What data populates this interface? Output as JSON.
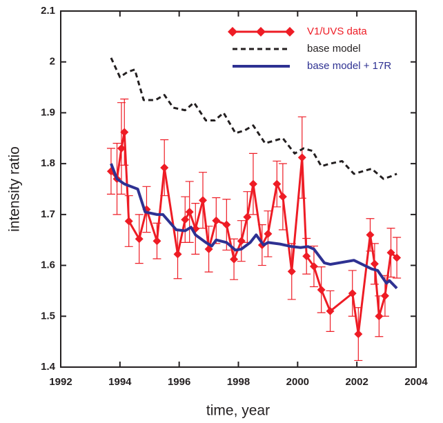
{
  "chart_data": {
    "type": "line",
    "xlabel": "time, year",
    "ylabel": "intensity ratio",
    "xlim": [
      1992,
      2004
    ],
    "xticks": [
      1992,
      1994,
      1996,
      1998,
      2000,
      2002,
      2004
    ],
    "ylim": [
      1.4,
      2.1
    ],
    "yticks": [
      1.4,
      1.5,
      1.6,
      1.7,
      1.8,
      1.9,
      2,
      2.1
    ],
    "legend": "upper right",
    "series": [
      {
        "name": "V1/UVS data",
        "color": "#ee1c25",
        "style": "solid-markers",
        "x": [
          1993.7,
          1993.9,
          1994.05,
          1994.15,
          1994.3,
          1994.65,
          1994.9,
          1995.25,
          1995.5,
          1995.95,
          1996.2,
          1996.35,
          1996.55,
          1996.8,
          1997.0,
          1997.25,
          1997.6,
          1997.85,
          1998.1,
          1998.3,
          1998.5,
          1998.8,
          1999.0,
          1999.3,
          1999.5,
          1999.8,
          2000.15,
          2000.3,
          2000.55,
          2000.8,
          2001.1,
          2001.85,
          2002.05,
          2002.45,
          2002.6,
          2002.75,
          2002.95,
          2003.15,
          2003.35
        ],
        "values": [
          1.785,
          1.77,
          1.83,
          1.862,
          1.687,
          1.652,
          1.71,
          1.648,
          1.792,
          1.622,
          1.69,
          1.705,
          1.672,
          1.728,
          1.632,
          1.688,
          1.68,
          1.612,
          1.648,
          1.695,
          1.76,
          1.64,
          1.662,
          1.76,
          1.735,
          1.588,
          1.812,
          1.618,
          1.598,
          1.552,
          1.51,
          1.545,
          1.465,
          1.66,
          1.603,
          1.5,
          1.54,
          1.625,
          1.615
        ],
        "errors": [
          0.045,
          0.07,
          0.09,
          0.065,
          0.05,
          0.048,
          0.045,
          0.035,
          0.055,
          0.048,
          0.045,
          0.06,
          0.05,
          0.055,
          0.045,
          0.045,
          0.05,
          0.04,
          0.04,
          0.05,
          0.06,
          0.04,
          0.045,
          0.045,
          0.065,
          0.055,
          0.08,
          0.035,
          0.04,
          0.045,
          0.04,
          0.045,
          0.052,
          0.032,
          0.04,
          0.04,
          0.04,
          0.048,
          0.04
        ]
      },
      {
        "name": "base model",
        "color": "#231f20",
        "style": "dashed",
        "x": [
          1993.7,
          1994.0,
          1994.25,
          1994.5,
          1994.8,
          1995.2,
          1995.5,
          1995.8,
          1996.2,
          1996.5,
          1996.9,
          1997.2,
          1997.5,
          1997.9,
          1998.2,
          1998.5,
          1998.9,
          1999.2,
          1999.5,
          1999.9,
          2000.2,
          2000.5,
          2000.8,
          2001.1,
          2001.5,
          2001.9,
          2002.2,
          2002.5,
          2002.9,
          2003.15,
          2003.35
        ],
        "values": [
          2.008,
          1.97,
          1.98,
          1.985,
          1.925,
          1.925,
          1.935,
          1.91,
          1.905,
          1.92,
          1.885,
          1.885,
          1.9,
          1.86,
          1.865,
          1.875,
          1.84,
          1.845,
          1.85,
          1.82,
          1.83,
          1.825,
          1.795,
          1.8,
          1.805,
          1.78,
          1.785,
          1.79,
          1.77,
          1.775,
          1.78
        ]
      },
      {
        "name": "base model + 17R",
        "color": "#2e3192",
        "style": "solid",
        "x": [
          1993.7,
          1993.9,
          1994.15,
          1994.6,
          1994.85,
          1995.25,
          1995.45,
          1995.9,
          1996.2,
          1996.4,
          1996.55,
          1996.9,
          1997.1,
          1997.25,
          1997.6,
          1997.9,
          1998.1,
          1998.4,
          1998.6,
          1998.85,
          1999.0,
          1999.4,
          1999.8,
          2000.1,
          2000.35,
          2000.55,
          2000.9,
          2001.1,
          2001.9,
          2002.5,
          2002.7,
          2003.0,
          2003.1,
          2003.35
        ],
        "values": [
          1.8,
          1.77,
          1.76,
          1.75,
          1.705,
          1.7,
          1.7,
          1.67,
          1.668,
          1.675,
          1.66,
          1.645,
          1.638,
          1.65,
          1.645,
          1.63,
          1.632,
          1.645,
          1.66,
          1.64,
          1.645,
          1.642,
          1.637,
          1.635,
          1.637,
          1.632,
          1.605,
          1.602,
          1.61,
          1.593,
          1.59,
          1.565,
          1.57,
          1.555
        ]
      }
    ]
  }
}
